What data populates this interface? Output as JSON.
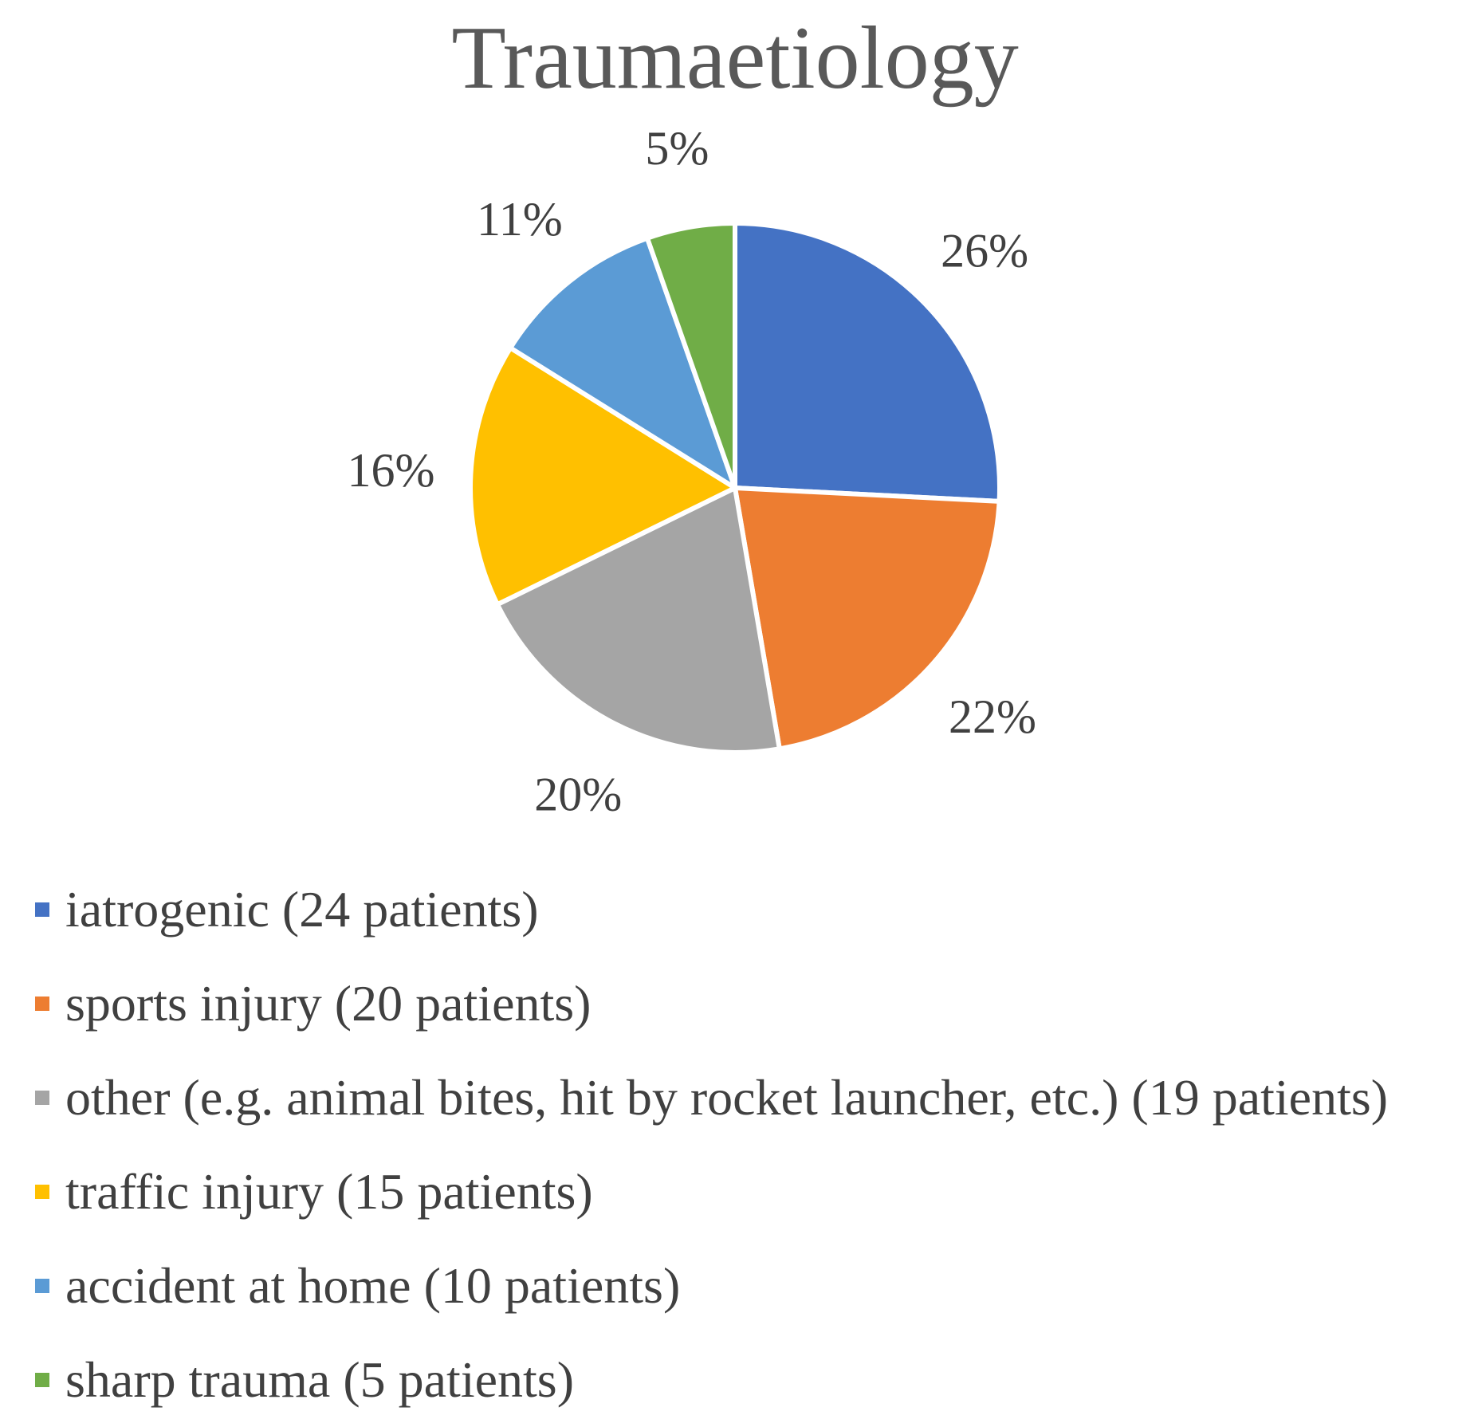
{
  "chart_data": {
    "type": "pie",
    "title": "Traumaetiology",
    "slices": [
      {
        "label": "iatrogenic (24 patients)",
        "patients": 24,
        "percent_label": "26%",
        "color": "#4472C4"
      },
      {
        "label": "sports injury (20 patients)",
        "patients": 20,
        "percent_label": "22%",
        "color": "#ED7D31"
      },
      {
        "label": "other (e.g. animal bites, hit by rocket launcher, etc.) (19 patients)",
        "patients": 19,
        "percent_label": "20%",
        "color": "#A5A5A5"
      },
      {
        "label": "traffic injury (15 patients)",
        "patients": 15,
        "percent_label": "16%",
        "color": "#FFC000"
      },
      {
        "label": "accident at home (10 patients)",
        "patients": 10,
        "percent_label": "11%",
        "color": "#5B9BD5"
      },
      {
        "label": "sharp trauma (5 patients)",
        "patients": 5,
        "percent_label": "5%",
        "color": "#70AD47"
      }
    ],
    "legend_position": "bottom",
    "start_angle": "12 o'clock",
    "direction": "clockwise"
  }
}
